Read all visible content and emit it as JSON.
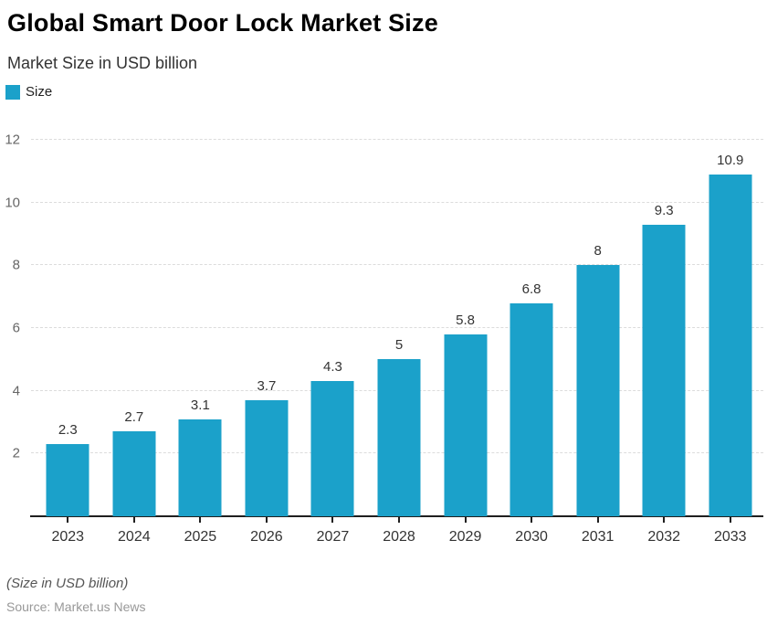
{
  "header": {
    "title": "Global Smart Door Lock Market Size",
    "subtitle": "Market Size in USD billion"
  },
  "legend": {
    "label": "Size",
    "swatch_color": "#1BA1CA"
  },
  "chart_data": {
    "type": "bar",
    "title": "Global Smart Door Lock Market Size",
    "subtitle": "Market Size in USD billion",
    "series_name": "Size",
    "categories": [
      "2023",
      "2024",
      "2025",
      "2026",
      "2027",
      "2028",
      "2029",
      "2030",
      "2031",
      "2032",
      "2033"
    ],
    "values": [
      2.3,
      2.7,
      3.1,
      3.7,
      4.3,
      5,
      5.8,
      6.8,
      8,
      9.3,
      10.9
    ],
    "value_labels": [
      "2.3",
      "2.7",
      "3.1",
      "3.7",
      "4.3",
      "5",
      "5.8",
      "6.8",
      "8",
      "9.3",
      "10.9"
    ],
    "xlabel": "",
    "ylabel": "",
    "ylim": [
      0,
      12
    ],
    "yticks": [
      2,
      4,
      6,
      8,
      10,
      12
    ],
    "grid": true,
    "gridline_style": "dashed",
    "legend_position": "top-left",
    "bar_color": "#1BA1CA",
    "axis_color": "#1f1f1f"
  },
  "footer": {
    "note": "(Size in USD billion)",
    "source": "Source: Market.us News"
  }
}
